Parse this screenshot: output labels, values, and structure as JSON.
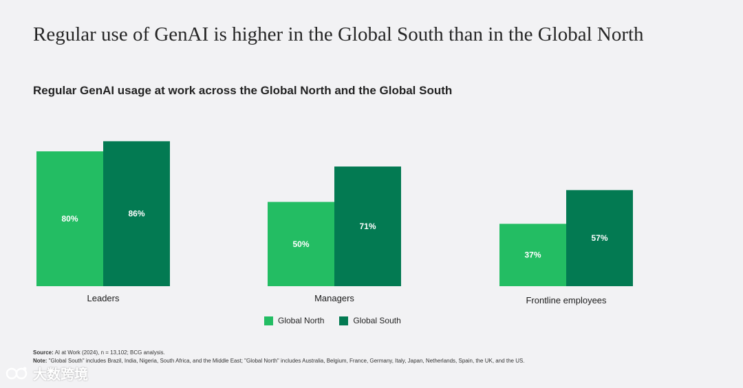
{
  "headline": "Regular use of GenAI is higher in the Global South than in the Global North",
  "chart_data": {
    "type": "bar",
    "title": "Regular GenAI usage at work across the Global North and the Global South",
    "categories": [
      "Leaders",
      "Managers",
      "Frontline employees"
    ],
    "series": [
      {
        "name": "Global North",
        "values": [
          80,
          50,
          37
        ],
        "labels": [
          "80%",
          "50%",
          "37%"
        ],
        "color": "#23bd63"
      },
      {
        "name": "Global South",
        "values": [
          86,
          71,
          57
        ],
        "labels": [
          "86%",
          "71%",
          "57%"
        ],
        "color": "#037a52"
      }
    ],
    "xlabel": "",
    "ylabel": "",
    "ylim": [
      0,
      100
    ],
    "grid": false,
    "legend_position": "bottom-center"
  },
  "footnotes": {
    "source_label": "Source:",
    "source_text": " AI at Work (2024), n = 13,102; BCG analysis.",
    "note_label": "Note:",
    "note_text": " \"Global South\" includes Brazil, India, Nigeria, South Africa, and the Middle East; \"Global North\" includes Australia, Belgium, France, Germany, Italy, Japan, Netherlands, Spain, the UK, and the US."
  },
  "watermark": {
    "text": "大数跨境",
    "icon": "logo-icon"
  }
}
